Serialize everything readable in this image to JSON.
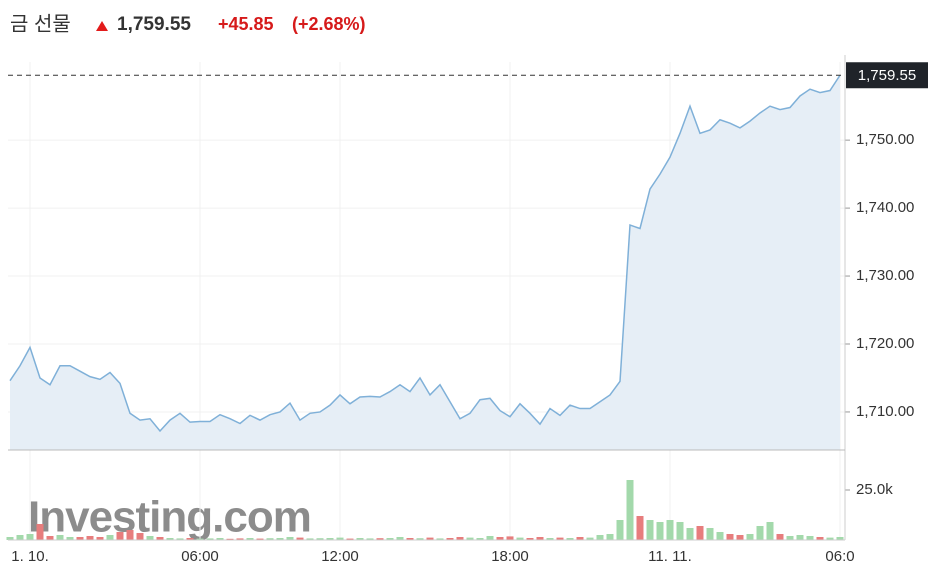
{
  "header": {
    "title": "금 선물",
    "price": "1,759.55",
    "change": "+45.85",
    "change_percent": "(+2.68%)"
  },
  "watermark": "Investing.com",
  "chart_data": [
    {
      "type": "area",
      "categories": [
        null,
        null,
        "1. 10.",
        null,
        null,
        null,
        null,
        null,
        null,
        null,
        null,
        null,
        null,
        null,
        null,
        null,
        null,
        null,
        null,
        "06:00",
        null,
        null,
        null,
        null,
        null,
        null,
        null,
        null,
        null,
        null,
        null,
        null,
        null,
        "12:00",
        null,
        null,
        null,
        null,
        null,
        null,
        null,
        null,
        null,
        null,
        null,
        null,
        null,
        null,
        null,
        null,
        "18:00",
        null,
        null,
        null,
        null,
        null,
        null,
        null,
        null,
        null,
        null,
        null,
        null,
        null,
        null,
        null,
        "11. 11.",
        null,
        null,
        null,
        null,
        null,
        null,
        null,
        null,
        null,
        null,
        null,
        null,
        null,
        null,
        null,
        null,
        "06:0"
      ],
      "values": [
        1714.6,
        1716.8,
        1719.5,
        1715.0,
        1714.0,
        1716.8,
        1716.8,
        1716.0,
        1715.2,
        1714.8,
        1715.8,
        1714.2,
        1709.8,
        1708.8,
        1709.0,
        1707.2,
        1708.8,
        1709.8,
        1708.5,
        1708.6,
        1708.6,
        1709.6,
        1709.0,
        1708.3,
        1709.5,
        1708.8,
        1709.6,
        1710.0,
        1711.3,
        1708.8,
        1709.8,
        1710.0,
        1711.0,
        1712.5,
        1711.2,
        1712.2,
        1712.3,
        1712.2,
        1713.0,
        1714.0,
        1713.0,
        1715.0,
        1712.5,
        1714.0,
        1711.5,
        1709.0,
        1709.8,
        1711.8,
        1712.0,
        1710.2,
        1709.3,
        1711.2,
        1709.8,
        1708.2,
        1710.5,
        1709.5,
        1711.0,
        1710.5,
        1710.5,
        1711.5,
        1712.5,
        1714.5,
        1737.5,
        1737.0,
        1742.8,
        1745.0,
        1747.5,
        1751.0,
        1755.0,
        1751.0,
        1751.5,
        1753.0,
        1752.5,
        1751.8,
        1752.8,
        1754.0,
        1755.0,
        1754.5,
        1754.8,
        1756.5,
        1757.5,
        1757.0,
        1757.3,
        1759.55
      ],
      "color": "#7fb0d8",
      "fill": "#e6eef6",
      "ylim": [
        1704.4,
        1761.5
      ],
      "yticks": [
        {
          "value": 1710,
          "label": "1,710.00"
        },
        {
          "value": 1720,
          "label": "1,720.00"
        },
        {
          "value": 1730,
          "label": "1,730.00"
        },
        {
          "value": 1740,
          "label": "1,740.00"
        },
        {
          "value": 1750,
          "label": "1,750.00"
        }
      ],
      "grid": true
    },
    {
      "type": "bar",
      "values": [
        1500,
        2500,
        3000,
        8000,
        2000,
        2500,
        1500,
        1500,
        2000,
        1500,
        2500,
        4000,
        5000,
        3500,
        2000,
        1500,
        1000,
        800,
        1000,
        700,
        800,
        1000,
        600,
        800,
        1000,
        700,
        900,
        1000,
        1500,
        1200,
        800,
        900,
        1000,
        1200,
        700,
        1000,
        800,
        900,
        1000,
        1500,
        1000,
        900,
        1200,
        800,
        1000,
        1500,
        1200,
        1000,
        2000,
        1500,
        1800,
        1200,
        1000,
        1500,
        1000,
        1200,
        1000,
        1500,
        1200,
        2500,
        3000,
        10000,
        30000,
        12000,
        10000,
        9000,
        10000,
        9000,
        6000,
        7000,
        6000,
        4000,
        3000,
        2500,
        3000,
        7000,
        9000,
        3000,
        2000,
        2500,
        2000,
        1500,
        1200,
        1500
      ],
      "up_color": "#a3d9ab",
      "down_color": "#e77d7d",
      "ylim": [
        0,
        44000
      ],
      "yticks": [
        {
          "value": 25000,
          "label": "25.0k"
        }
      ]
    }
  ]
}
